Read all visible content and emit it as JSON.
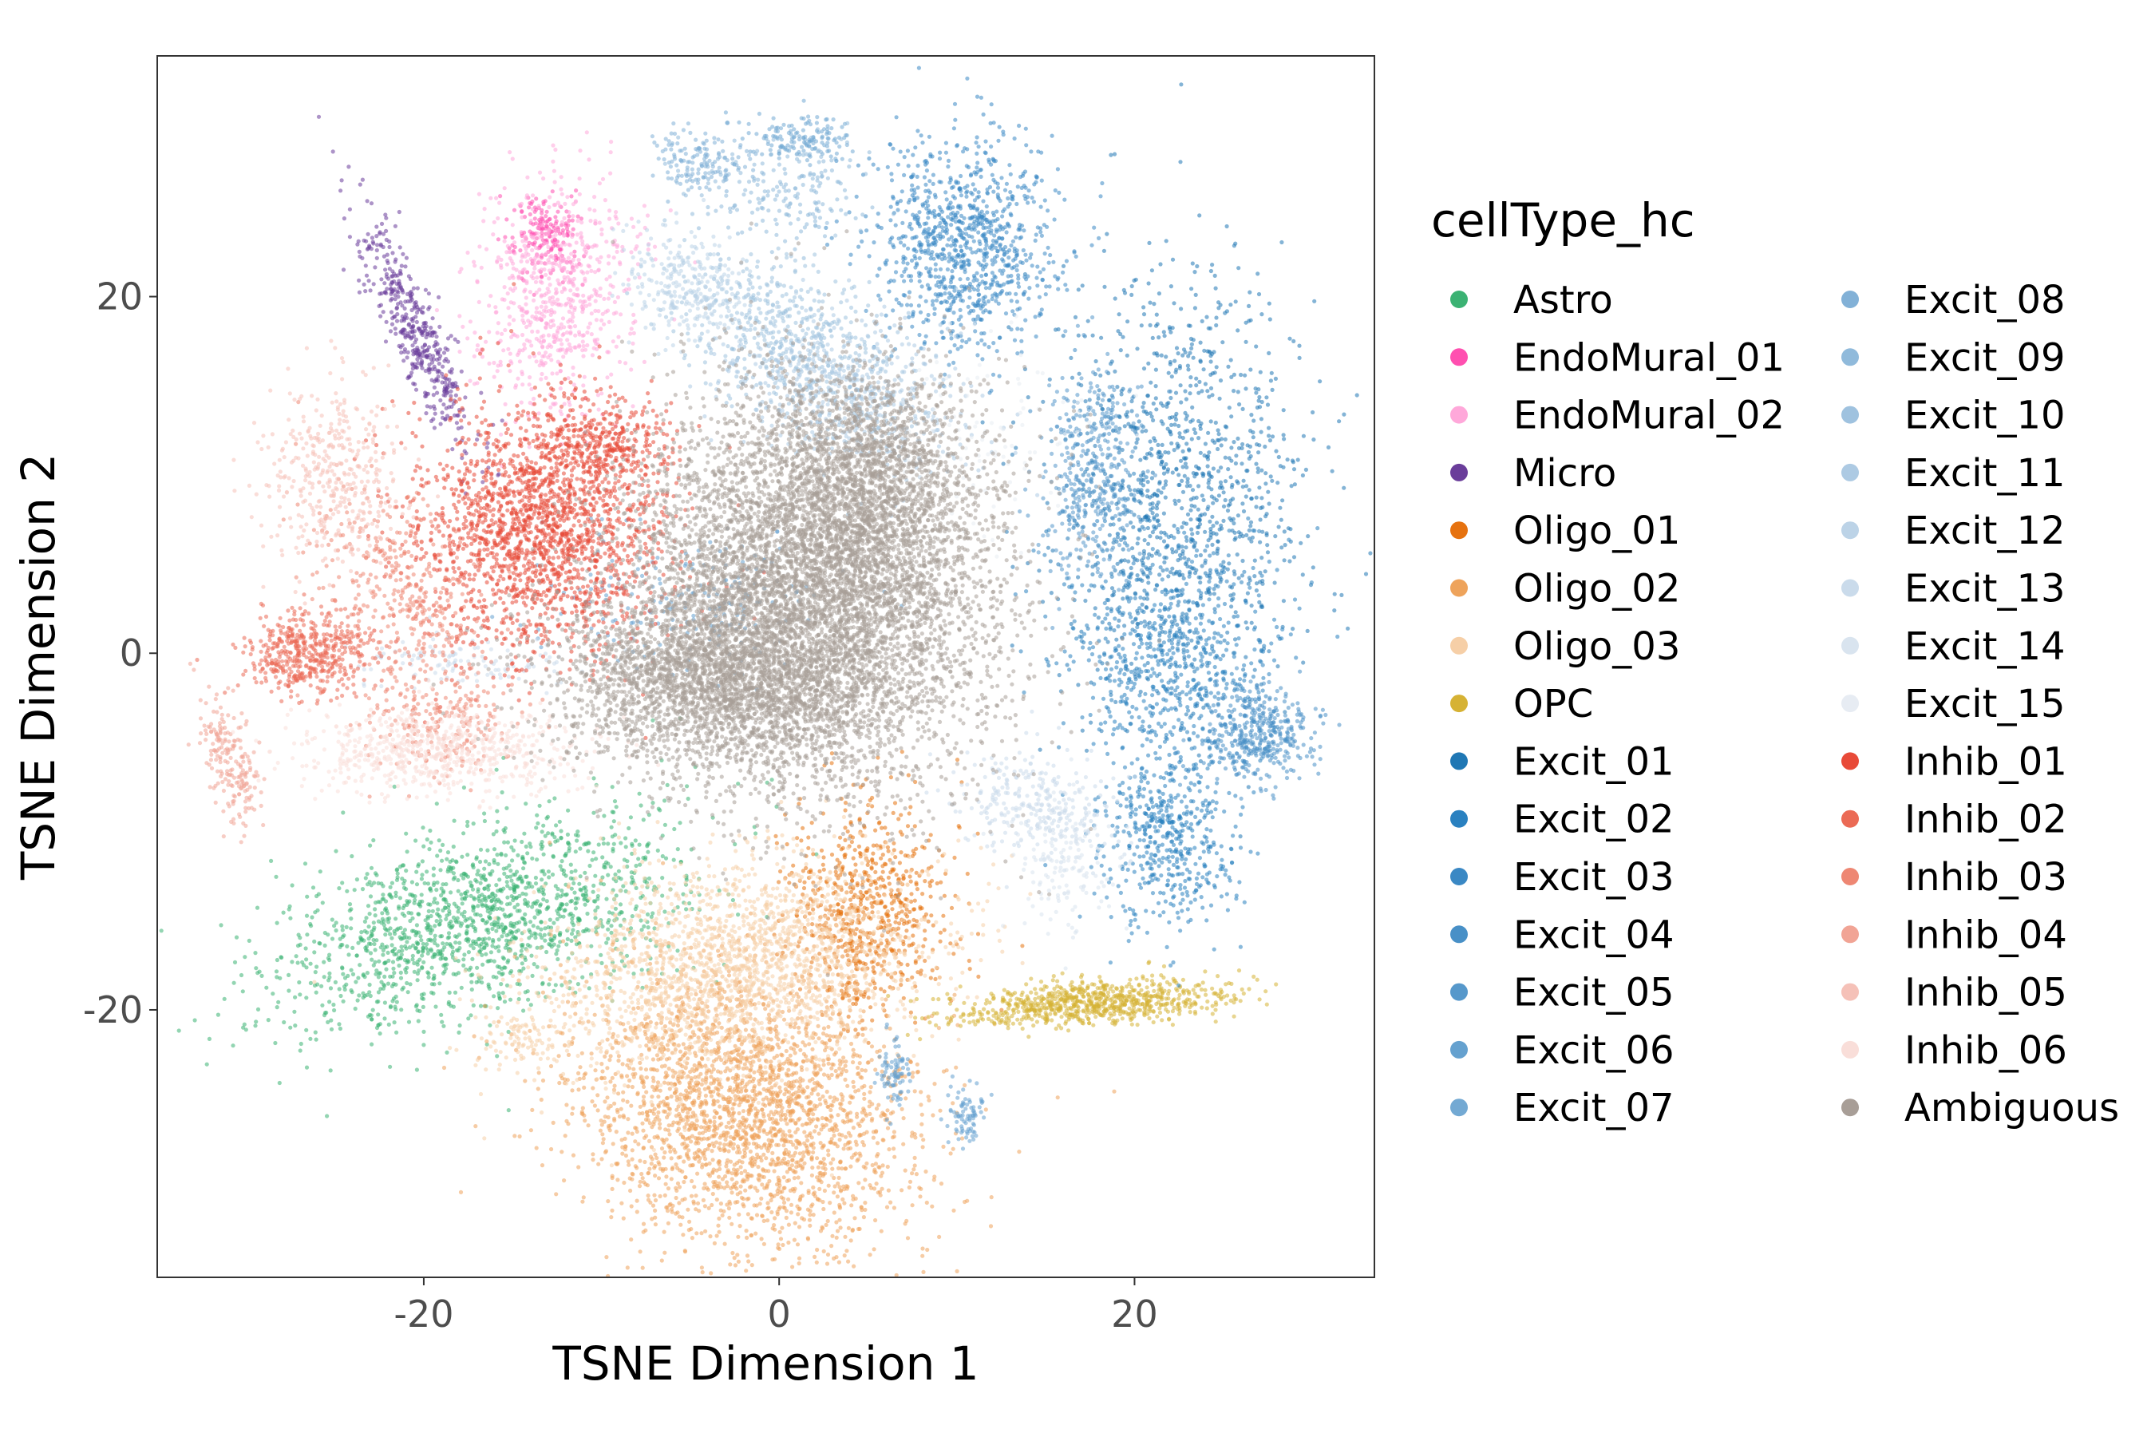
{
  "chart_data": {
    "type": "scatter",
    "xlabel": "TSNE Dimension 1",
    "ylabel": "TSNE Dimension 2",
    "xlim": [
      -35,
      33.5
    ],
    "ylim": [
      -35,
      33.5
    ],
    "xticks": [
      -20,
      0,
      20
    ],
    "yticks": [
      -20,
      0,
      20
    ],
    "grid": false,
    "legend": {
      "title": "cellType_hc",
      "placement": "right",
      "columns": 2
    },
    "series": [
      {
        "name": "Astro",
        "color": "#3BB273",
        "clusters": [
          {
            "x": -17,
            "y": -15,
            "sx": 5.8,
            "sy": 2.6,
            "rot": 18,
            "n": 1600
          }
        ]
      },
      {
        "name": "EndoMural_01",
        "color": "#FF4FB0",
        "clusters": [
          {
            "x": -13,
            "y": 23.5,
            "sx": 1.0,
            "sy": 1.2,
            "rot": 0,
            "n": 180
          }
        ]
      },
      {
        "name": "EndoMural_02",
        "color": "#FFA8DA",
        "clusters": [
          {
            "x": -12.5,
            "y": 20,
            "sx": 2.2,
            "sy": 3.2,
            "rot": -10,
            "n": 700
          }
        ]
      },
      {
        "name": "Micro",
        "color": "#6A3D9A",
        "clusters": [
          {
            "x": -20.5,
            "y": 18,
            "sx": 0.7,
            "sy": 3.5,
            "rot": 25,
            "n": 450
          }
        ]
      },
      {
        "name": "Oligo_01",
        "color": "#E6720F",
        "clusters": [
          {
            "x": 5,
            "y": -14.5,
            "sx": 2.2,
            "sy": 3.0,
            "rot": 0,
            "n": 700
          }
        ]
      },
      {
        "name": "Oligo_02",
        "color": "#EEA35B",
        "clusters": [
          {
            "x": -2,
            "y": -25.5,
            "sx": 5.0,
            "sy": 3.8,
            "rot": -20,
            "n": 2600
          }
        ]
      },
      {
        "name": "Oligo_03",
        "color": "#F6CFA7",
        "clusters": [
          {
            "x": -2.5,
            "y": -17.5,
            "sx": 5.5,
            "sy": 2.8,
            "rot": 10,
            "n": 2000
          },
          {
            "x": -14.5,
            "y": -21.5,
            "sx": 1.0,
            "sy": 0.9,
            "rot": 0,
            "n": 80
          }
        ]
      },
      {
        "name": "OPC",
        "color": "#D6B234",
        "clusters": [
          {
            "x": 17.5,
            "y": -19.6,
            "sx": 4.0,
            "sy": 0.6,
            "rot": 4,
            "n": 800
          }
        ]
      },
      {
        "name": "Excit_01",
        "color": "#1F77B4",
        "clusters": [
          {
            "x": 22.5,
            "y": 9,
            "sx": 3.5,
            "sy": 6.0,
            "rot": 0,
            "n": 1200
          }
        ]
      },
      {
        "name": "Excit_02",
        "color": "#2A81C0",
        "clusters": [
          {
            "x": 22,
            "y": 0,
            "sx": 3.0,
            "sy": 3.5,
            "rot": 0,
            "n": 700
          },
          {
            "x": 22,
            "y": -10.5,
            "sx": 1.8,
            "sy": 2.5,
            "rot": 0,
            "n": 500
          }
        ]
      },
      {
        "name": "Excit_03",
        "color": "#3A88C4",
        "clusters": [
          {
            "x": 10.5,
            "y": 23,
            "sx": 2.5,
            "sy": 3.0,
            "rot": 0,
            "n": 1000
          }
        ]
      },
      {
        "name": "Excit_04",
        "color": "#4890C7",
        "clusters": [
          {
            "x": 27,
            "y": -4.5,
            "sx": 1.6,
            "sy": 1.3,
            "rot": 0,
            "n": 400
          }
        ]
      },
      {
        "name": "Excit_05",
        "color": "#5698CB",
        "clusters": [
          {
            "x": 17.5,
            "y": 10,
            "sx": 1.5,
            "sy": 3.0,
            "rot": 0,
            "n": 400
          }
        ]
      },
      {
        "name": "Excit_06",
        "color": "#65A1CF",
        "clusters": [
          {
            "x": 6.5,
            "y": -23.5,
            "sx": 0.5,
            "sy": 1.0,
            "rot": 0,
            "n": 80
          },
          {
            "x": 10.5,
            "y": -26,
            "sx": 0.5,
            "sy": 1.0,
            "rot": 0,
            "n": 80
          },
          {
            "x": -5,
            "y": 3,
            "sx": 4.0,
            "sy": 2.0,
            "rot": 0,
            "n": 200
          }
        ]
      },
      {
        "name": "Excit_07",
        "color": "#73A9D3",
        "clusters": [
          {
            "x": 1.5,
            "y": 29,
            "sx": 1.5,
            "sy": 0.7,
            "rot": 0,
            "n": 150
          }
        ]
      },
      {
        "name": "Excit_08",
        "color": "#82B1D7",
        "clusters": [
          {
            "x": -4.5,
            "y": 27.5,
            "sx": 1.6,
            "sy": 0.8,
            "rot": 0,
            "n": 150
          }
        ]
      },
      {
        "name": "Excit_09",
        "color": "#90BADB",
        "clusters": [
          {
            "x": 0,
            "y": 26,
            "sx": 2.5,
            "sy": 1.5,
            "rot": 0,
            "n": 200
          }
        ]
      },
      {
        "name": "Excit_10",
        "color": "#9FC2DF",
        "clusters": [
          {
            "x": 1,
            "y": 17,
            "sx": 3.5,
            "sy": 2.0,
            "rot": -30,
            "n": 600
          }
        ]
      },
      {
        "name": "Excit_11",
        "color": "#ADCAE3",
        "clusters": [
          {
            "x": 4,
            "y": 14.5,
            "sx": 3.5,
            "sy": 2.0,
            "rot": -20,
            "n": 500
          }
        ]
      },
      {
        "name": "Excit_12",
        "color": "#BCD3E7",
        "clusters": [
          {
            "x": -5,
            "y": 20.5,
            "sx": 2.0,
            "sy": 1.5,
            "rot": -30,
            "n": 300
          }
        ]
      },
      {
        "name": "Excit_13",
        "color": "#CADBEB",
        "clusters": [
          {
            "x": 14.5,
            "y": -8.5,
            "sx": 2.5,
            "sy": 1.5,
            "rot": -20,
            "n": 300
          },
          {
            "x": -18,
            "y": -0.5,
            "sx": 3.0,
            "sy": 0.8,
            "rot": 0,
            "n": 120
          }
        ]
      },
      {
        "name": "Excit_14",
        "color": "#D9E4EF",
        "clusters": [
          {
            "x": 16,
            "y": -11.5,
            "sx": 1.5,
            "sy": 2.0,
            "rot": 0,
            "n": 150
          }
        ]
      },
      {
        "name": "Excit_15",
        "color": "#E7ECF3",
        "clusters": [
          {
            "x": 12,
            "y": 12,
            "sx": 3.0,
            "sy": 3.0,
            "rot": 0,
            "n": 100
          }
        ]
      },
      {
        "name": "Inhib_01",
        "color": "#E84A38",
        "clusters": [
          {
            "x": -13.5,
            "y": 7,
            "sx": 3.5,
            "sy": 3.5,
            "rot": 20,
            "n": 2000
          },
          {
            "x": -10,
            "y": 12,
            "sx": 2.0,
            "sy": 1.2,
            "rot": 0,
            "n": 300
          }
        ]
      },
      {
        "name": "Inhib_02",
        "color": "#EB6A55",
        "clusters": [
          {
            "x": -26.5,
            "y": 0,
            "sx": 1.8,
            "sy": 1.2,
            "rot": 0,
            "n": 500
          }
        ]
      },
      {
        "name": "Inhib_03",
        "color": "#EE8773",
        "clusters": [
          {
            "x": -21,
            "y": 3,
            "sx": 2.0,
            "sy": 3.5,
            "rot": 30,
            "n": 400
          },
          {
            "x": -19,
            "y": -4,
            "sx": 2.0,
            "sy": 1.5,
            "rot": 0,
            "n": 200
          }
        ]
      },
      {
        "name": "Inhib_04",
        "color": "#F1A495",
        "clusters": [
          {
            "x": -31,
            "y": -6,
            "sx": 0.7,
            "sy": 2.0,
            "rot": 20,
            "n": 200
          }
        ]
      },
      {
        "name": "Inhib_05",
        "color": "#F5C1B8",
        "clusters": [
          {
            "x": -25,
            "y": 10,
            "sx": 2.0,
            "sy": 2.5,
            "rot": 0,
            "n": 400
          }
        ]
      },
      {
        "name": "Inhib_06",
        "color": "#F9DED9",
        "clusters": [
          {
            "x": -19,
            "y": -5.5,
            "sx": 4.0,
            "sy": 1.2,
            "rot": 0,
            "n": 700
          }
        ]
      },
      {
        "name": "Ambiguous",
        "color": "#A89E97",
        "clusters": [
          {
            "x": 2,
            "y": 3.5,
            "sx": 5.0,
            "sy": 5.5,
            "rot": 20,
            "n": 6500
          },
          {
            "x": -4,
            "y": -1.5,
            "sx": 4.5,
            "sy": 2.5,
            "rot": 0,
            "n": 2500
          },
          {
            "x": 5,
            "y": 10,
            "sx": 3.0,
            "sy": 3.0,
            "rot": 0,
            "n": 1500
          }
        ]
      }
    ]
  }
}
